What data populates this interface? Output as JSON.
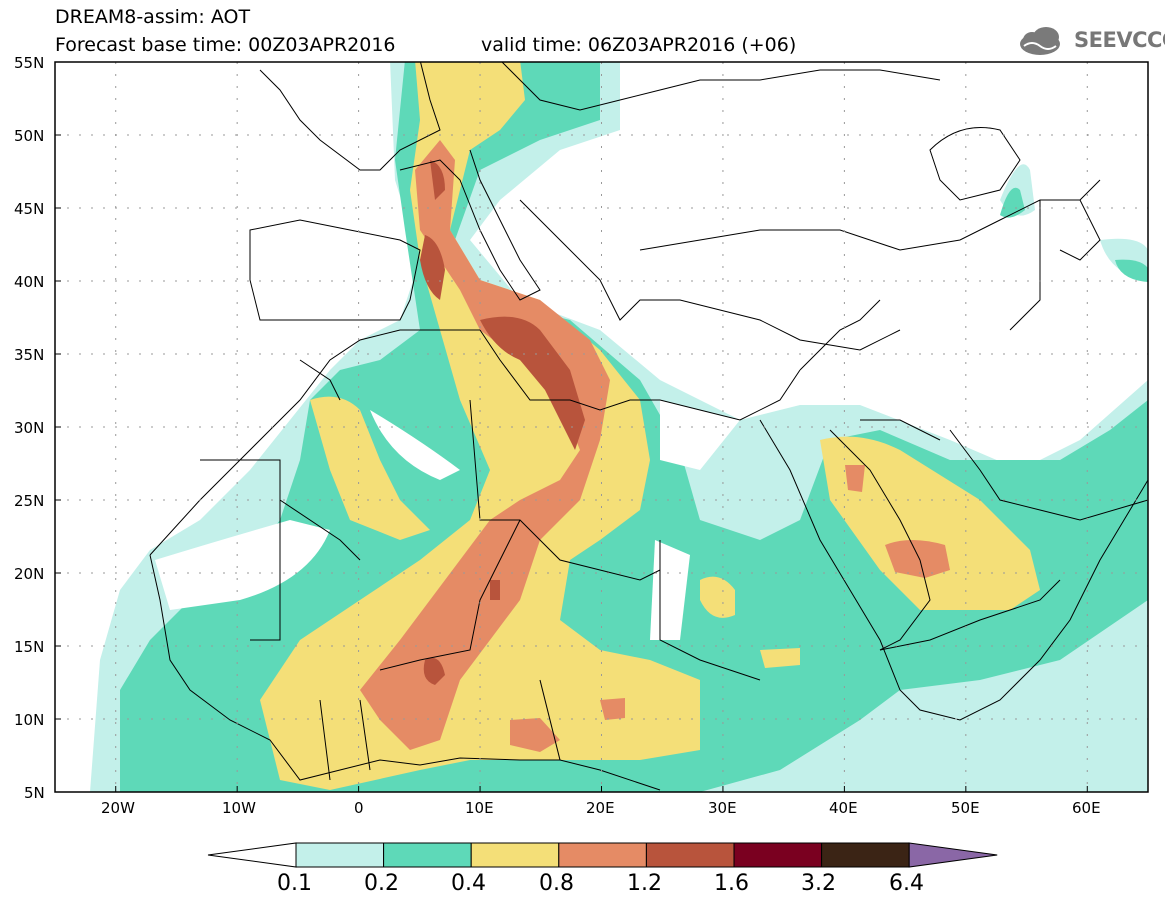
{
  "header": {
    "title_line1": "DREAM8-assim: AOT",
    "title_line2": "Forecast base time: 00Z03APR2016",
    "valid_time": "valid time: 06Z03APR2016 (+06)",
    "logo_text": "SEEVCCC"
  },
  "map": {
    "lon_range": [
      -25,
      65
    ],
    "lat_range": [
      5,
      55
    ],
    "lat_ticks": [
      "55N",
      "50N",
      "45N",
      "40N",
      "35N",
      "30N",
      "25N",
      "20N",
      "15N",
      "10N",
      "5N"
    ],
    "lon_ticks": [
      "20W",
      "10W",
      "0",
      "10E",
      "20E",
      "30E",
      "40E",
      "50E",
      "60E"
    ],
    "grid": true
  },
  "legend": {
    "labels": [
      "0.1",
      "0.2",
      "0.4",
      "0.8",
      "1.2",
      "1.6",
      "3.2",
      "6.4"
    ],
    "colors": [
      "#c3f0ea",
      "#5ed9b8",
      "#f4df78",
      "#e58b65",
      "#b8543c",
      "#7a0020",
      "#3b2415",
      "#8a67a6"
    ]
  }
}
